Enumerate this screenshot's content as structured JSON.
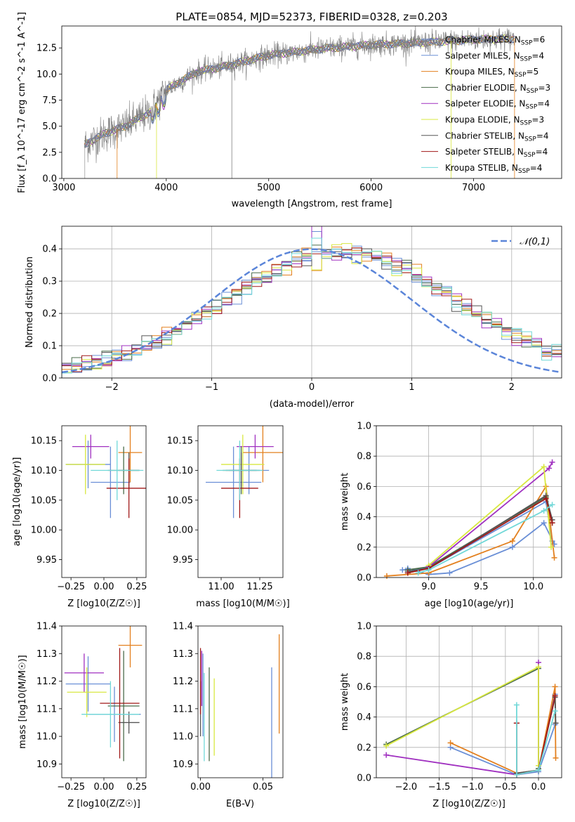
{
  "figure": {
    "title": "PLATE=0854, MJD=52373, FIBERID=0328, z=0.203"
  },
  "models": [
    {
      "name": "Chabrier MILES",
      "nssp": "6",
      "color": "#6a8fd6"
    },
    {
      "name": "Salpeter MILES",
      "nssp": "4",
      "color": "#6a8fd6"
    },
    {
      "name": "Kroupa MILES",
      "nssp": "5",
      "color": "#e3801f"
    },
    {
      "name": "Chabrier ELODIE",
      "nssp": "3",
      "color": "#4a6b4a"
    },
    {
      "name": "Salpeter ELODIE",
      "nssp": "4",
      "color": "#a030c0"
    },
    {
      "name": "Kroupa ELODIE",
      "nssp": "3",
      "color": "#d8e840"
    },
    {
      "name": "Chabrier STELIB",
      "nssp": "4",
      "color": "#555555"
    },
    {
      "name": "Salpeter STELIB",
      "nssp": "4",
      "color": "#a01818"
    },
    {
      "name": "Kroupa STELIB",
      "nssp": "4",
      "color": "#70d8d8"
    }
  ],
  "chart_data": [
    {
      "id": "spectrum",
      "type": "line",
      "xlabel": "wavelength [Angstrom, rest frame]",
      "ylabel": "Flux [f_λ 10^-17 erg cm^-2 s^-1 A^-1]",
      "xlim": [
        2980,
        7860
      ],
      "ylim": [
        0,
        14.6
      ],
      "xticks": [
        3000,
        4000,
        5000,
        6000,
        7000
      ],
      "yticks": [
        0.0,
        2.5,
        5.0,
        7.5,
        10.0,
        12.5
      ],
      "continuum_anchor_points": [
        [
          3200,
          3.2
        ],
        [
          3400,
          4.3
        ],
        [
          3600,
          5.0
        ],
        [
          3850,
          6.4
        ],
        [
          4000,
          8.5
        ],
        [
          4300,
          10.2
        ],
        [
          4600,
          10.8
        ],
        [
          5000,
          11.8
        ],
        [
          5500,
          12.4
        ],
        [
          6000,
          12.8
        ],
        [
          6500,
          13.0
        ],
        [
          7000,
          13.3
        ],
        [
          7400,
          13.4
        ]
      ],
      "legend_position": "upper right"
    },
    {
      "id": "residuals",
      "type": "histogram",
      "xlabel": "(data-model)/error",
      "ylabel": "Normed distribution",
      "xlim": [
        -2.5,
        2.5
      ],
      "ylim": [
        0,
        0.47
      ],
      "xticks": [
        -2,
        -1,
        0,
        1,
        2
      ],
      "yticks": [
        0.0,
        0.1,
        0.2,
        0.3,
        0.4
      ],
      "bin_width": 0.1,
      "reference_curve": {
        "name": "𝒩(0,1)",
        "mean": 0,
        "sigma": 1,
        "color": "#5b85d9"
      },
      "legend_position": "upper right",
      "grid": true
    },
    {
      "id": "age_vs_Z",
      "type": "errorbar",
      "xlabel": "Z [log10(Z/Z☉)]",
      "ylabel": "age  [log10(age/yr)]",
      "xlim": [
        -0.32,
        0.32
      ],
      "ylim": [
        9.92,
        10.175
      ],
      "xticks": [
        -0.25,
        0.0,
        0.25
      ],
      "yticks": [
        9.95,
        10.0,
        10.05,
        10.1,
        10.15
      ],
      "points": [
        {
          "x": 0.05,
          "xerr": 0.15,
          "y": 10.08,
          "yerr": 0.06
        },
        {
          "x": -0.12,
          "xerr": 0.17,
          "y": 10.11,
          "yerr": 0.04
        },
        {
          "x": 0.2,
          "xerr": 0.09,
          "y": 10.13,
          "yerr": 0.05
        },
        {
          "x": 0.15,
          "xerr": 0.12,
          "y": 10.1,
          "yerr": 0.04
        },
        {
          "x": -0.1,
          "xerr": 0.14,
          "y": 10.14,
          "yerr": 0.02
        },
        {
          "x": -0.14,
          "xerr": 0.15,
          "y": 10.11,
          "yerr": 0.05
        },
        {
          "x": 0.19,
          "xerr": 0.08,
          "y": 10.1,
          "yerr": 0.03
        },
        {
          "x": 0.19,
          "xerr": 0.17,
          "y": 10.07,
          "yerr": 0.05
        },
        {
          "x": 0.1,
          "xerr": 0.2,
          "y": 10.1,
          "yerr": 0.05
        }
      ]
    },
    {
      "id": "age_vs_mass",
      "type": "errorbar",
      "xlabel": "mass [log10(M/M☉)]",
      "ylabel": "",
      "xlim": [
        10.85,
        11.4
      ],
      "ylim": [
        9.92,
        10.175
      ],
      "xticks": [
        11.0,
        11.25
      ],
      "yticks": [
        9.95,
        10.0,
        10.05,
        10.1,
        10.15
      ],
      "points": [
        {
          "x": 11.08,
          "xerr": 0.18,
          "y": 10.08,
          "yerr": 0.06
        },
        {
          "x": 11.18,
          "xerr": 0.13,
          "y": 10.1,
          "yerr": 0.04
        },
        {
          "x": 11.27,
          "xerr": 0.13,
          "y": 10.13,
          "yerr": 0.05
        },
        {
          "x": 11.13,
          "xerr": 0.12,
          "y": 10.1,
          "yerr": 0.04
        },
        {
          "x": 11.22,
          "xerr": 0.12,
          "y": 10.14,
          "yerr": 0.02
        },
        {
          "x": 11.14,
          "xerr": 0.14,
          "y": 10.11,
          "yerr": 0.05
        },
        {
          "x": 11.13,
          "xerr": 0.1,
          "y": 10.1,
          "yerr": 0.03
        },
        {
          "x": 11.12,
          "xerr": 0.12,
          "y": 10.07,
          "yerr": 0.05
        },
        {
          "x": 11.12,
          "xerr": 0.15,
          "y": 10.1,
          "yerr": 0.05
        }
      ]
    },
    {
      "id": "mass_weight_vs_age",
      "type": "line",
      "xlabel": "age  [log10(age/yr)]",
      "ylabel": "mass weight",
      "xlim": [
        8.5,
        10.27
      ],
      "ylim": [
        0,
        1
      ],
      "xticks": [
        9.0,
        9.5,
        10.0
      ],
      "yticks": [
        0.0,
        0.2,
        0.4,
        0.6,
        0.8,
        1.0
      ],
      "grid": true,
      "series": [
        {
          "x": [
            8.8,
            9.0,
            9.2,
            9.8,
            10.1,
            10.2
          ],
          "y": [
            0.06,
            0.02,
            0.03,
            0.2,
            0.36,
            0.22
          ]
        },
        {
          "x": [
            8.75,
            9.0,
            10.12,
            10.18
          ],
          "y": [
            0.05,
            0.06,
            0.5,
            0.24
          ]
        },
        {
          "x": [
            8.6,
            9.0,
            9.8,
            10.12,
            10.2
          ],
          "y": [
            0.01,
            0.03,
            0.24,
            0.6,
            0.13
          ]
        },
        {
          "x": [
            8.8,
            9.0,
            10.12,
            10.18
          ],
          "y": [
            0.05,
            0.07,
            0.53,
            0.36
          ]
        },
        {
          "x": [
            9.0,
            10.15,
            10.18
          ],
          "y": [
            0.07,
            0.72,
            0.76
          ]
        },
        {
          "x": [
            9.0,
            10.1,
            10.17
          ],
          "y": [
            0.08,
            0.73,
            0.2
          ]
        },
        {
          "x": [
            8.8,
            9.0,
            10.12,
            10.18
          ],
          "y": [
            0.04,
            0.06,
            0.54,
            0.38
          ]
        },
        {
          "x": [
            8.8,
            9.0,
            10.12,
            10.18
          ],
          "y": [
            0.03,
            0.06,
            0.52,
            0.36
          ]
        },
        {
          "x": [
            8.9,
            9.0,
            10.1,
            10.18
          ],
          "y": [
            0.03,
            0.05,
            0.44,
            0.48
          ]
        }
      ]
    },
    {
      "id": "mass_vs_Z",
      "type": "errorbar",
      "xlabel": "Z [log10(Z/Z☉)]",
      "ylabel": "mass [log10(M/M☉)]",
      "xlim": [
        -0.32,
        0.32
      ],
      "ylim": [
        10.85,
        11.4
      ],
      "xticks": [
        -0.25,
        0.0,
        0.25
      ],
      "yticks": [
        10.9,
        11.0,
        11.1,
        11.2,
        11.3,
        11.4
      ],
      "points": [
        {
          "x": 0.08,
          "xerr": 0.2,
          "y": 11.08,
          "yerr": 0.1
        },
        {
          "x": -0.12,
          "xerr": 0.17,
          "y": 11.19,
          "yerr": 0.1
        },
        {
          "x": 0.2,
          "xerr": 0.09,
          "y": 11.33,
          "yerr": 0.08
        },
        {
          "x": 0.15,
          "xerr": 0.12,
          "y": 11.11,
          "yerr": 0.2
        },
        {
          "x": -0.15,
          "xerr": 0.15,
          "y": 11.23,
          "yerr": 0.07
        },
        {
          "x": -0.13,
          "xerr": 0.15,
          "y": 11.16,
          "yerr": 0.09
        },
        {
          "x": 0.19,
          "xerr": 0.08,
          "y": 11.05,
          "yerr": 0.04
        },
        {
          "x": 0.12,
          "xerr": 0.15,
          "y": 11.12,
          "yerr": 0.2
        },
        {
          "x": 0.05,
          "xerr": 0.22,
          "y": 11.08,
          "yerr": 0.12
        }
      ]
    },
    {
      "id": "mass_vs_ebv",
      "type": "errorbar",
      "xlabel": "E(B-V)",
      "ylabel": "",
      "xlim": [
        -0.002,
        0.066
      ],
      "ylim": [
        10.85,
        11.4
      ],
      "xticks": [
        0.0,
        0.05
      ],
      "yticks": [
        10.9,
        11.0,
        11.1,
        11.2,
        11.3,
        11.4
      ],
      "points": [
        {
          "x": 0.057,
          "y": 11.05,
          "yerr": 0.2
        },
        {
          "x": 0.002,
          "y": 11.15,
          "yerr": 0.15
        },
        {
          "x": 0.063,
          "y": 11.19,
          "yerr": 0.18
        },
        {
          "x": 0.007,
          "y": 11.08,
          "yerr": 0.17
        },
        {
          "x": 0.001,
          "y": 11.21,
          "yerr": 0.1
        },
        {
          "x": 0.011,
          "y": 11.07,
          "yerr": 0.14
        },
        {
          "x": 0.0,
          "y": 11.1,
          "yerr": 0.1
        },
        {
          "x": 0.0,
          "y": 11.2,
          "yerr": 0.12
        },
        {
          "x": 0.003,
          "y": 11.07,
          "yerr": 0.16
        }
      ]
    },
    {
      "id": "mass_weight_vs_Z",
      "type": "line",
      "xlabel": "Z [log10(Z/Z☉)]",
      "ylabel": "mass weight",
      "xlim": [
        -2.45,
        0.35
      ],
      "ylim": [
        0,
        1
      ],
      "xticks": [
        -2.0,
        -1.5,
        -1.0,
        -0.5,
        0.0
      ],
      "yticks": [
        0.0,
        0.2,
        0.4,
        0.6,
        0.8,
        1.0
      ],
      "grid": true,
      "series": [
        {
          "x": [
            -1.33,
            -0.33,
            0.0,
            0.25
          ],
          "y": [
            0.2,
            0.02,
            0.04,
            0.35
          ]
        },
        {
          "x": [
            -0.33,
            0.0,
            0.25
          ],
          "y": [
            0.02,
            0.05,
            0.55
          ]
        },
        {
          "x": [
            -1.33,
            -0.33,
            0.0,
            0.25,
            0.26
          ],
          "y": [
            0.23,
            0.03,
            0.05,
            0.6,
            0.13
          ]
        },
        {
          "x": [
            -2.3,
            -0.0,
            -0.0
          ],
          "y": [
            0.22,
            0.72,
            0.06
          ]
        },
        {
          "x": [
            -2.3,
            -0.33,
            0.0,
            0.0
          ],
          "y": [
            0.15,
            0.02,
            0.05,
            0.76
          ]
        },
        {
          "x": [
            -2.3,
            0.0,
            0.0
          ],
          "y": [
            0.21,
            0.73,
            0.08
          ]
        },
        {
          "x": [
            -0.33,
            -0.33,
            0.0,
            0.25,
            0.26
          ],
          "y": [
            0.36,
            0.03,
            0.05,
            0.53,
            0.36
          ]
        },
        {
          "x": [
            -0.33,
            -0.33,
            0.0,
            0.25
          ],
          "y": [
            0.36,
            0.02,
            0.05,
            0.54
          ]
        },
        {
          "x": [
            -0.33,
            -0.33,
            0.0,
            0.25
          ],
          "y": [
            0.48,
            0.02,
            0.05,
            0.44
          ]
        }
      ]
    }
  ]
}
